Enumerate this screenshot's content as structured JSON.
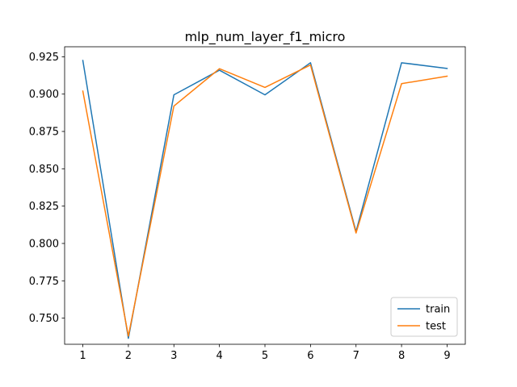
{
  "chart_data": {
    "type": "line",
    "title": "mlp_num_layer_f1_micro",
    "xlabel": "",
    "ylabel": "",
    "x": [
      1,
      2,
      3,
      4,
      5,
      6,
      7,
      8,
      9
    ],
    "xlim": [
      0.6,
      9.4
    ],
    "ylim": [
      0.7325,
      0.9317
    ],
    "x_ticks": [
      1,
      2,
      3,
      4,
      5,
      6,
      7,
      8,
      9
    ],
    "y_ticks": [
      0.75,
      0.775,
      0.8,
      0.825,
      0.85,
      0.875,
      0.9,
      0.925
    ],
    "y_tick_labels": [
      "0.750",
      "0.775",
      "0.800",
      "0.825",
      "0.850",
      "0.875",
      "0.900",
      "0.925"
    ],
    "grid": false,
    "legend_position": "lower right",
    "series": [
      {
        "name": "train",
        "color": "#1f77b4",
        "values": [
          0.9225,
          0.7365,
          0.8995,
          0.916,
          0.8995,
          0.921,
          0.808,
          0.921,
          0.9172
        ]
      },
      {
        "name": "test",
        "color": "#ff7f0e",
        "values": [
          0.902,
          0.738,
          0.892,
          0.917,
          0.9045,
          0.9195,
          0.807,
          0.907,
          0.912
        ]
      }
    ]
  }
}
